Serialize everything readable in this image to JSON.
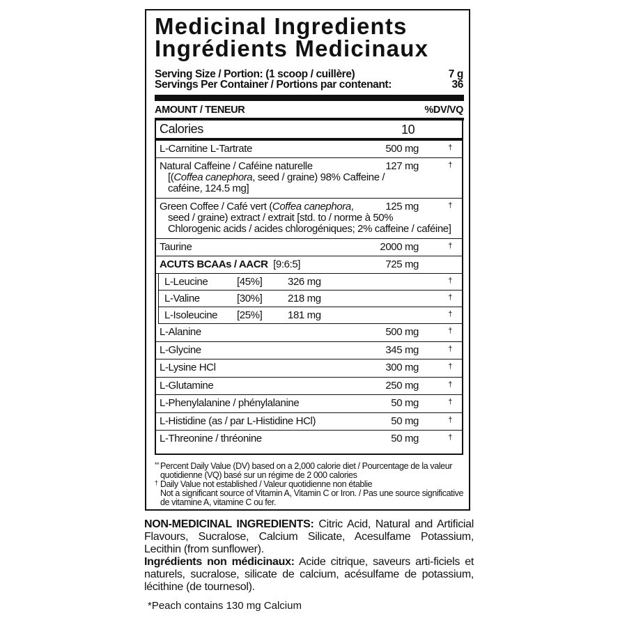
{
  "title_en": "Medicinal Ingredients",
  "title_fr": "Ingrédients Medicinaux",
  "serving_size_label": "Serving Size / Portion: (1 scoop / cuillère)",
  "serving_size_value": "7 g",
  "servings_label": "Servings Per Container / Portions par contenant:",
  "servings_value": "36",
  "amount_header": "AMOUNT / TENEUR",
  "dv_header": "%DV/VQ",
  "calories_label": "Calories",
  "calories_value": "10",
  "rows": [
    {
      "name": "L-Carnitine L-Tartrate",
      "amount": "500 mg",
      "dv": "†"
    },
    {
      "name": "Natural Caffeine / Caféine naturelle",
      "sub": "[(<i>Coffea canephora</i>, seed / graine) 98% Caffeine /<br>caféine, 124.5 mg]",
      "amount": "127 mg",
      "dv": "†"
    },
    {
      "name": "Green Coffee / Café vert (<i>Coffea canephora</i>,",
      "sub": "seed / graine) extract / extrait [std. to / norme à 50%<br>Chlorogenic acids / acides chlorogéniques; 2% caffeine / caféine]",
      "amount": "125 mg",
      "dv": "†"
    },
    {
      "name": "Taurine",
      "amount": "2000 mg",
      "dv": "†"
    },
    {
      "name": "<b>ACUTS BCAAs / AACR</b> &nbsp;[9:6:5]",
      "amount": "725 mg",
      "dv": ""
    }
  ],
  "bcaa_rows": [
    {
      "name": "L-Leucine",
      "pct": "[45%]",
      "amount": "326 mg",
      "dv": "†"
    },
    {
      "name": "L-Valine",
      "pct": "[30%]",
      "amount": "218 mg",
      "dv": "†"
    },
    {
      "name": "L-Isoleucine",
      "pct": "[25%]",
      "amount": "181 mg",
      "dv": "†"
    }
  ],
  "rows2": [
    {
      "name": "L-Alanine",
      "amount": "500 mg",
      "dv": "†"
    },
    {
      "name": "L-Glycine",
      "amount": "345 mg",
      "dv": "†"
    },
    {
      "name": "L-Lysine HCl",
      "amount": "300 mg",
      "dv": "†"
    },
    {
      "name": "L-Glutamine",
      "amount": "250 mg",
      "dv": "†"
    },
    {
      "name": "L-Phenylalanine / phénylalanine",
      "amount": "50 mg",
      "dv": "†"
    },
    {
      "name": "L-Histidine (as / par L-Histidine HCl)",
      "amount": "50 mg",
      "dv": "†"
    },
    {
      "name": "L-Threonine / thréonine",
      "amount": "50 mg",
      "dv": "†"
    }
  ],
  "footnotes": {
    "dv_mark": "**",
    "dv_note": "Percent Daily Value (DV) based on a 2,000 calorie diet / Pourcentage de la valeur quotidienne (VQ) basé sur un régime de 2 000 calories",
    "dagger_mark": "†",
    "dagger_note": "Daily Value not established / Valeur quotidienne non établie",
    "significant_note": "Not a significant source of Vitamin A, Vitamin C or Iron. / Pas une source significative de vitamine A, vitamine C ou fer."
  },
  "non_medicinal": {
    "en_label": "NON-MEDICINAL INGREDIENTS:",
    "en_text": " Citric Acid, Natural and Artificial Flavours, Sucralose, Calcium Silicate, Acesulfame Potassium, Lecithin (from sunflower).",
    "fr_label": "Ingrédients non médicinaux:",
    "fr_text": " Acide citrique, saveurs arti-ficiels et naturels, sucralose, silicate de calcium, acésulfame de potassium, lécithine (de tournesol)."
  },
  "note": "*Peach contains 130 mg Calcium"
}
